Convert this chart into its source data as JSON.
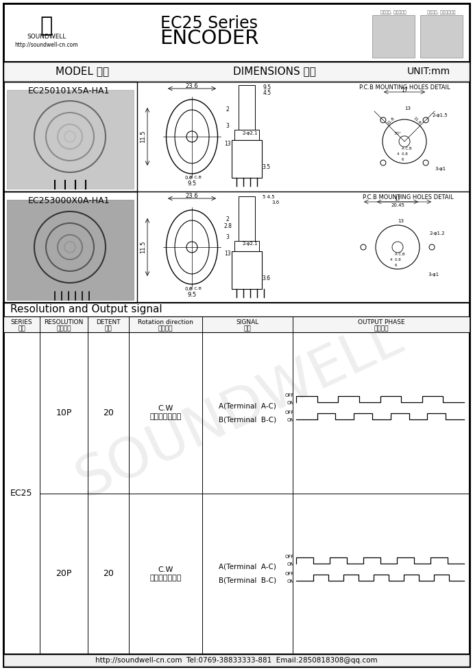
{
  "title_line1": "EC25 Series",
  "title_line2": "ENCODER",
  "company_name": "SOUNDWELL",
  "company_url": "http://soundwell-cn.com",
  "footer_text": "http://soundwell-cn.com  Tel:0769-38833333-881  Email:2850818308@qq.com",
  "model1": "EC250101X5A-HA1",
  "model2": "EC253000X0A-HA1",
  "header_model": "MODEL 品名",
  "header_dim": "DIMENSIONS 尺寸",
  "header_unit": "UNIT:mm",
  "resolution_title": "Resolution and Output signal",
  "series_name": "EC25",
  "res1": "10P",
  "det1": "20",
  "rot1": "C.W\n（顺时针方向）",
  "sig1a": "A(Terminal  A-C)",
  "sig1b": "B(Terminal  B-C)",
  "res2": "20P",
  "det2": "20",
  "rot2": "C.W\n（顺时针方向）",
  "sig2a": "A(Terminal  A-C)",
  "sig2b": "B(Terminal  B-C)",
  "bg_color": "#ffffff",
  "border_color": "#000000",
  "pcb_detail_text": "P.C.B MOUNTING HOLES DETAIL",
  "col_labels": [
    "SERIES\n系列",
    "RESOLUTION\n分解能力",
    "DETENT\n定位",
    "Rotation direction\n旋转方向",
    "SIGNAL\n信号",
    "OUTPUT PHASE\n输出波形"
  ],
  "watermark": "SOUNDWELL",
  "qr_label1": "企业微信, 扫码有惊喜",
  "qr_label2": "升威官网, 发现更多产品"
}
